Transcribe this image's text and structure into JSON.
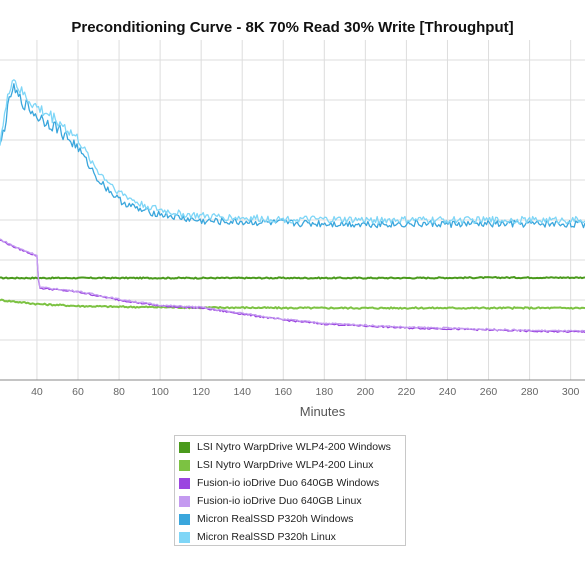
{
  "chart_data": {
    "type": "line",
    "title": "Preconditioning Curve - 8K 70% Read 30% Write [Throughput]",
    "xlabel": "Minutes",
    "ylabel": "",
    "x_ticks": [
      40,
      60,
      80,
      100,
      120,
      140,
      160,
      180,
      200,
      220,
      240,
      260,
      280,
      300
    ],
    "x_visible_range": [
      22,
      307
    ],
    "y_gridlines": [
      1,
      2,
      3,
      4,
      5,
      6,
      7,
      8
    ],
    "ylim": [
      0,
      8.5
    ],
    "grid": true,
    "legend_position": "bottom",
    "series": [
      {
        "name": "LSI Nytro WarpDrive WLP4-200 Windows",
        "color": "#4a9a1c",
        "x": [
          22,
          60,
          100,
          140,
          180,
          220,
          260,
          307
        ],
        "y": [
          2.55,
          2.55,
          2.55,
          2.55,
          2.55,
          2.55,
          2.56,
          2.56
        ]
      },
      {
        "name": "LSI Nytro WarpDrive WLP4-200 Linux",
        "color": "#7cc242",
        "x": [
          22,
          40,
          60,
          80,
          100,
          120,
          140,
          160,
          180,
          200,
          220,
          240,
          260,
          280,
          307
        ],
        "y": [
          2.0,
          1.9,
          1.85,
          1.83,
          1.82,
          1.81,
          1.81,
          1.8,
          1.8,
          1.8,
          1.8,
          1.8,
          1.8,
          1.8,
          1.8
        ]
      },
      {
        "name": "Fusion-io ioDrive Duo 640GB Windows",
        "color": "#9b45e0",
        "x": [
          22,
          30,
          40,
          41,
          60,
          80,
          100,
          120,
          140,
          160,
          180,
          200,
          220,
          240,
          260,
          280,
          307
        ],
        "y": [
          3.5,
          3.3,
          3.1,
          2.3,
          2.2,
          2.0,
          1.85,
          1.8,
          1.65,
          1.5,
          1.4,
          1.35,
          1.3,
          1.28,
          1.25,
          1.22,
          1.2
        ]
      },
      {
        "name": "Fusion-io ioDrive Duo 640GB Linux",
        "color": "#c49af0",
        "x": [
          22,
          30,
          40,
          41,
          60,
          80,
          100,
          120,
          140,
          160,
          180,
          200,
          220,
          240,
          260,
          280,
          307
        ],
        "y": [
          3.52,
          3.32,
          3.12,
          2.32,
          2.22,
          2.02,
          1.87,
          1.82,
          1.67,
          1.52,
          1.42,
          1.37,
          1.32,
          1.3,
          1.27,
          1.24,
          1.22
        ]
      },
      {
        "name": "Micron RealSSD P320h Windows",
        "color": "#3aa6dc",
        "x": [
          22,
          28,
          32,
          40,
          50,
          60,
          70,
          80,
          90,
          100,
          110,
          120,
          140,
          160,
          180,
          200,
          220,
          240,
          260,
          280,
          307
        ],
        "y": [
          5.8,
          7.3,
          7.0,
          6.6,
          6.3,
          5.8,
          5.0,
          4.5,
          4.25,
          4.15,
          4.05,
          3.97,
          3.95,
          3.92,
          3.91,
          3.9,
          3.9,
          3.9,
          3.9,
          3.9,
          3.9
        ]
      },
      {
        "name": "Micron RealSSD P320h Linux",
        "color": "#7fd6f7",
        "x": [
          22,
          28,
          32,
          40,
          50,
          60,
          70,
          80,
          90,
          100,
          110,
          120,
          140,
          160,
          180,
          200,
          220,
          240,
          260,
          280,
          307
        ],
        "y": [
          6.0,
          7.6,
          7.2,
          6.8,
          6.5,
          6.0,
          5.2,
          4.7,
          4.4,
          4.25,
          4.15,
          4.1,
          4.05,
          4.02,
          4.01,
          4.0,
          4.0,
          4.0,
          4.0,
          4.0,
          4.0
        ]
      }
    ]
  },
  "axis": {
    "x_tick_labels": [
      "40",
      "60",
      "80",
      "100",
      "120",
      "140",
      "160",
      "180",
      "200",
      "220",
      "240",
      "260",
      "280",
      "300"
    ]
  },
  "colors": {
    "grid": "#dddddd",
    "axis": "#888888",
    "background": "#ffffff"
  }
}
